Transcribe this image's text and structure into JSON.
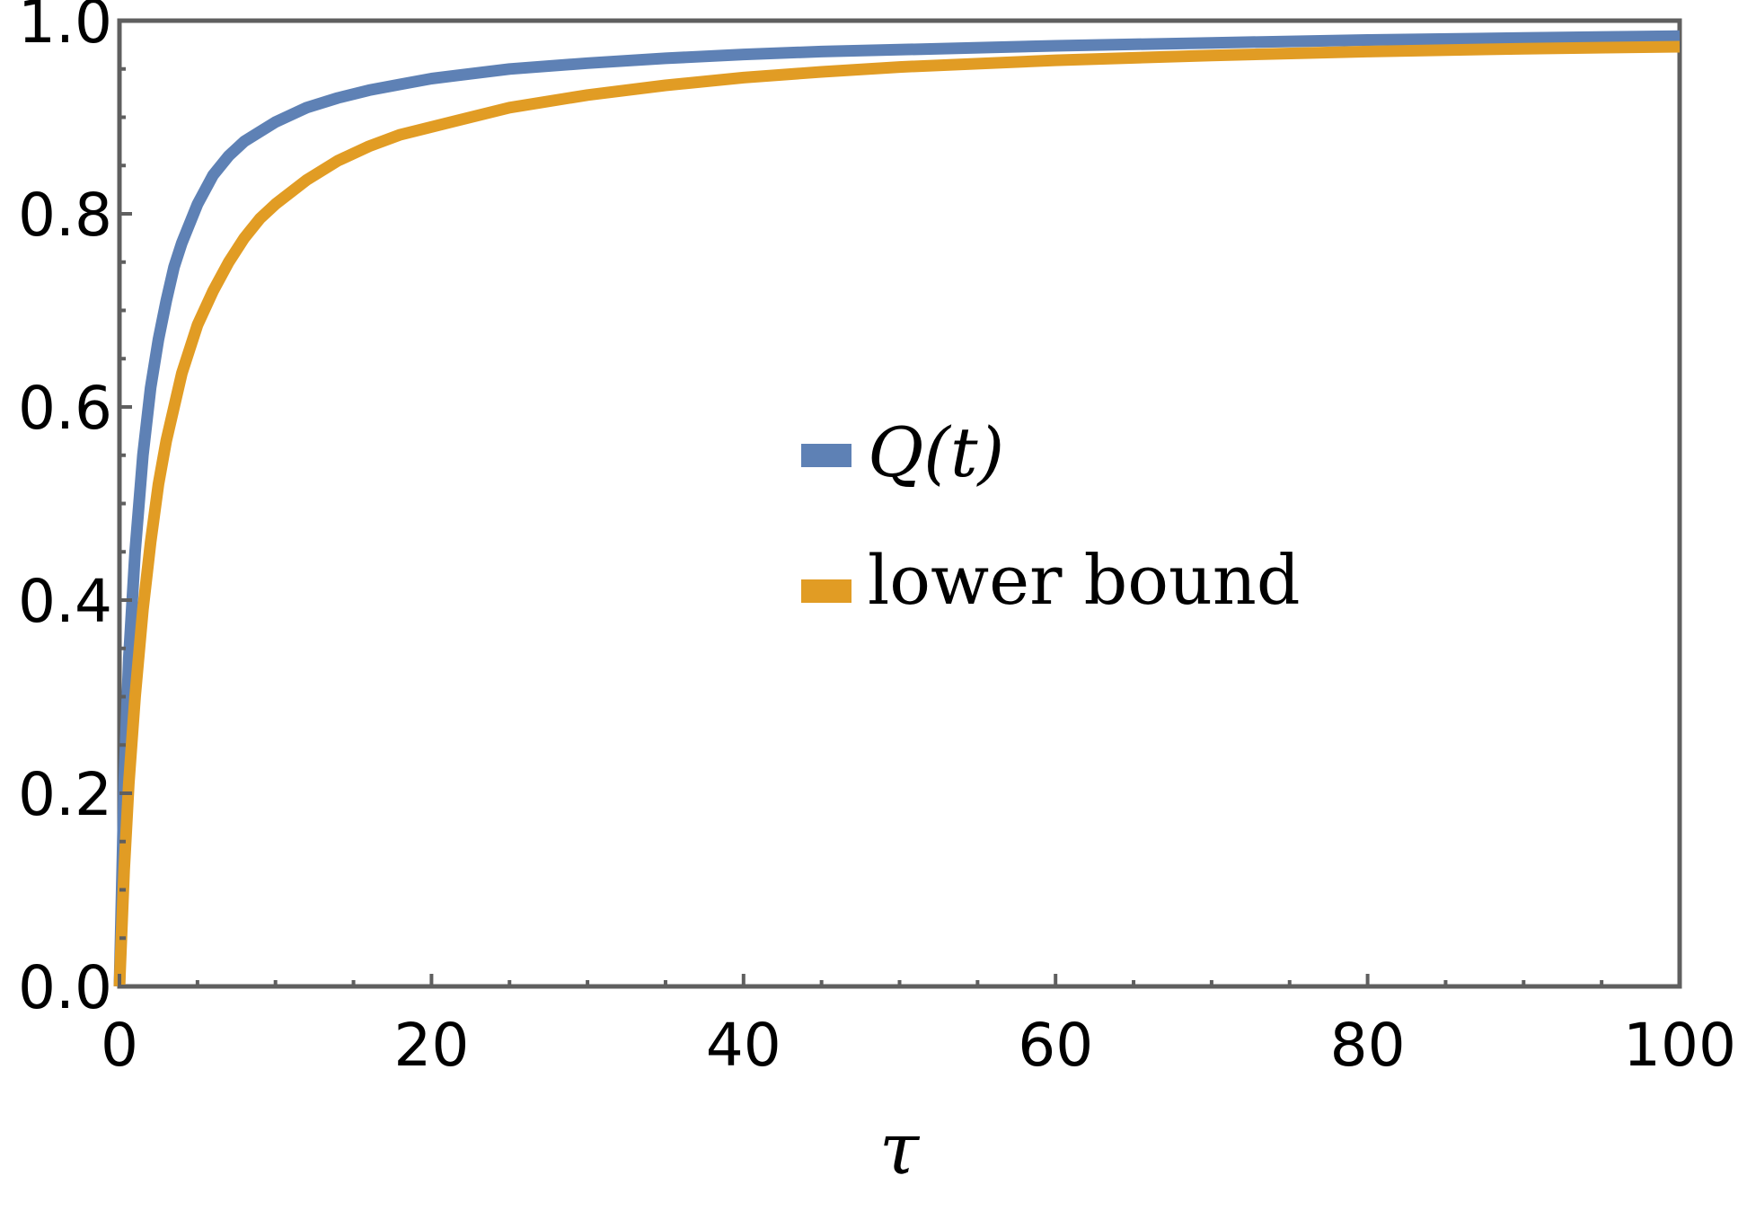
{
  "chart_data": {
    "type": "line",
    "title": "",
    "xlabel": "τ",
    "ylabel": "",
    "xlim": [
      0,
      100
    ],
    "ylim": [
      0,
      1
    ],
    "x_ticks": [
      0,
      20,
      40,
      60,
      80,
      100
    ],
    "x_tick_labels": [
      "0",
      "20",
      "40",
      "60",
      "80",
      "100"
    ],
    "x_minor_ticks": [
      5,
      10,
      15,
      25,
      30,
      35,
      45,
      50,
      55,
      65,
      70,
      75,
      85,
      90,
      95
    ],
    "y_ticks": [
      0,
      0.2,
      0.4,
      0.6,
      0.8,
      1.0
    ],
    "y_tick_labels": [
      "0.0",
      "0.2",
      "0.4",
      "0.6",
      "0.8",
      "1.0"
    ],
    "y_minor_ticks": [
      0.05,
      0.1,
      0.15,
      0.25,
      0.3,
      0.35,
      0.45,
      0.5,
      0.55,
      0.65,
      0.7,
      0.75,
      0.85,
      0.9,
      0.95
    ],
    "grid": false,
    "legend_position": "center",
    "series": [
      {
        "name": "Q(t)",
        "color": "#5e81b5",
        "x": [
          0,
          0.3,
          0.6,
          1,
          1.5,
          2,
          2.5,
          3,
          3.5,
          4,
          5,
          6,
          7,
          8,
          9,
          10,
          12,
          14,
          16,
          18,
          20,
          25,
          30,
          35,
          40,
          45,
          50,
          60,
          70,
          80,
          90,
          100
        ],
        "y": [
          0.0,
          0.21,
          0.34,
          0.45,
          0.55,
          0.62,
          0.67,
          0.71,
          0.745,
          0.77,
          0.81,
          0.84,
          0.86,
          0.875,
          0.885,
          0.895,
          0.91,
          0.92,
          0.928,
          0.934,
          0.94,
          0.95,
          0.956,
          0.961,
          0.965,
          0.968,
          0.97,
          0.974,
          0.977,
          0.98,
          0.982,
          0.984
        ]
      },
      {
        "name": "lower bound",
        "color": "#e19c24",
        "x": [
          0,
          0.3,
          0.6,
          1,
          1.5,
          2,
          2.5,
          3,
          3.5,
          4,
          5,
          6,
          7,
          8,
          9,
          10,
          12,
          14,
          16,
          18,
          20,
          25,
          30,
          35,
          40,
          45,
          50,
          60,
          70,
          80,
          90,
          100
        ],
        "y": [
          0.0,
          0.12,
          0.21,
          0.3,
          0.39,
          0.46,
          0.52,
          0.565,
          0.6,
          0.635,
          0.685,
          0.72,
          0.75,
          0.775,
          0.795,
          0.81,
          0.835,
          0.855,
          0.87,
          0.882,
          0.89,
          0.91,
          0.923,
          0.933,
          0.941,
          0.947,
          0.952,
          0.959,
          0.964,
          0.968,
          0.971,
          0.973
        ]
      }
    ]
  }
}
